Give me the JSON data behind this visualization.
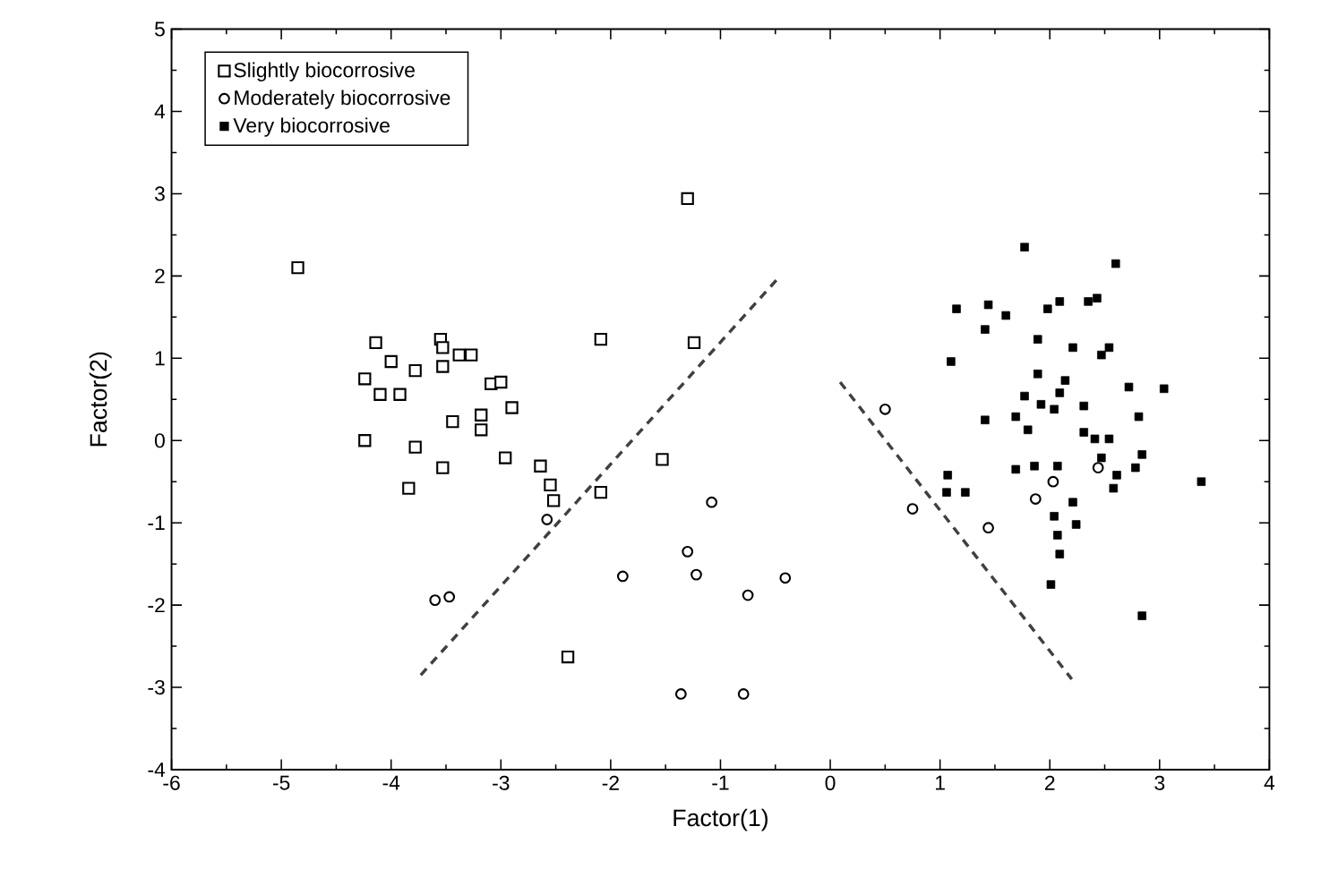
{
  "chart_data": {
    "type": "scatter",
    "xlabel": "Factor(1)",
    "ylabel": "Factor(2)",
    "xlim": [
      -6,
      4
    ],
    "ylim": [
      -4,
      5
    ],
    "xticks": [
      -6,
      -5,
      -4,
      -3,
      -2,
      -1,
      0,
      1,
      2,
      3,
      4
    ],
    "yticks": [
      -4,
      -3,
      -2,
      -1,
      0,
      1,
      2,
      3,
      4,
      5
    ],
    "grid": false,
    "legend": "top left",
    "series": [
      {
        "name": "Slightly biocorrosive",
        "color": "#000000",
        "marker": "square",
        "x": [
          -4.14,
          -3.55,
          -3.53,
          -3.38,
          -3.27,
          -4.0,
          -3.78,
          -3.53,
          -4.24,
          -4.1,
          -3.92,
          -3.09,
          -3.0,
          -2.9,
          -3.44,
          -3.18,
          -3.18,
          -4.24,
          -3.78,
          -3.53,
          -2.96,
          -3.84,
          -2.64,
          -2.55,
          -2.52,
          -2.09,
          -2.09,
          -1.3,
          -1.24,
          -1.53,
          -2.39,
          -4.85
        ],
        "values": [
          1.19,
          1.23,
          1.13,
          1.04,
          1.04,
          0.96,
          0.85,
          0.9,
          0.75,
          0.56,
          0.56,
          0.69,
          0.71,
          0.4,
          0.23,
          0.31,
          0.13,
          0.0,
          -0.08,
          -0.33,
          -0.21,
          -0.58,
          -0.31,
          -0.54,
          -0.73,
          1.23,
          -0.63,
          2.94,
          1.19,
          -0.23,
          -2.63,
          2.1
        ]
      },
      {
        "name": "Moderately biocorrosive",
        "color": "#000000",
        "marker": "circle",
        "x": [
          -2.58,
          -3.6,
          -3.47,
          -1.08,
          -1.3,
          -1.89,
          -1.22,
          -0.75,
          -0.41,
          -1.36,
          -0.79,
          0.5,
          0.75,
          1.44,
          1.87,
          2.03,
          2.44
        ],
        "values": [
          -0.96,
          -1.94,
          -1.9,
          -0.75,
          -1.35,
          -1.65,
          -1.63,
          -1.88,
          -1.67,
          -3.08,
          -3.08,
          0.38,
          -0.83,
          -1.06,
          -0.71,
          -0.5,
          -0.33
        ]
      },
      {
        "name": "Very biocorrosive",
        "color": "#000000",
        "marker": "square",
        "x": [
          1.77,
          2.6,
          1.15,
          1.44,
          1.6,
          1.98,
          2.09,
          2.35,
          2.43,
          1.41,
          1.89,
          2.21,
          2.47,
          2.54,
          1.1,
          1.89,
          2.14,
          2.09,
          1.77,
          1.92,
          2.04,
          2.31,
          2.72,
          3.04,
          1.41,
          1.69,
          1.8,
          2.81,
          2.31,
          2.41,
          2.54,
          1.69,
          1.86,
          2.07,
          2.47,
          2.84,
          2.78,
          2.61,
          2.58,
          1.07,
          1.06,
          1.23,
          2.21,
          2.04,
          2.24,
          2.07,
          2.09,
          2.01,
          2.84,
          3.38
        ],
        "values": [
          2.35,
          2.15,
          1.6,
          1.65,
          1.52,
          1.6,
          1.69,
          1.69,
          1.73,
          1.35,
          1.23,
          1.13,
          1.04,
          1.13,
          0.96,
          0.81,
          0.73,
          0.58,
          0.54,
          0.44,
          0.38,
          0.42,
          0.65,
          0.63,
          0.25,
          0.29,
          0.13,
          0.29,
          0.1,
          0.02,
          0.02,
          -0.35,
          -0.31,
          -0.31,
          -0.21,
          -0.17,
          -0.33,
          -0.42,
          -0.58,
          -0.42,
          -0.63,
          -0.63,
          -0.75,
          -0.92,
          -1.02,
          -1.15,
          -1.38,
          -1.75,
          -2.13,
          -0.5
        ]
      },
      {
        "type": "line",
        "color": "#404040",
        "marker": "none",
        "line_style": "dashed",
        "x": [
          -3.73,
          -0.47
        ],
        "values": [
          -2.85,
          1.98
        ]
      },
      {
        "type": "line",
        "color": "#404040",
        "marker": "none",
        "line_style": "dashed",
        "x": [
          0.09,
          2.2
        ],
        "values": [
          0.71,
          -2.9
        ]
      }
    ]
  }
}
